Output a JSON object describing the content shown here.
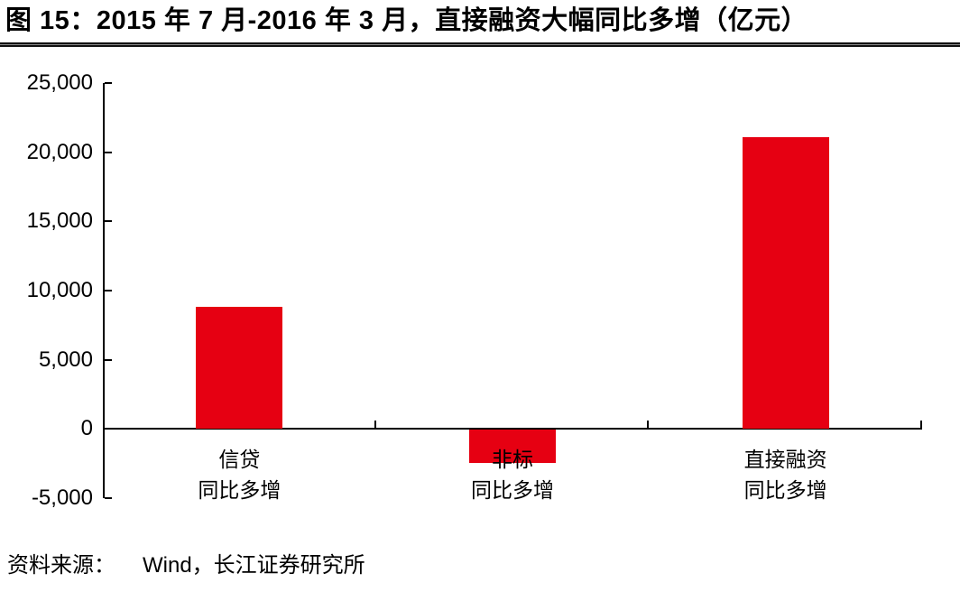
{
  "figure": {
    "title": "图 15：2015 年 7 月-2016 年 3 月，直接融资大幅同比多增（亿元）",
    "source_prefix": "资料来源：",
    "source_text": "Wind，长江证券研究所"
  },
  "colors": {
    "bar": "#e60012",
    "axis": "#000000",
    "text": "#000000"
  },
  "chart_data": {
    "type": "bar",
    "title": "图 15：2015 年 7 月-2016 年 3 月，直接融资大幅同比多增（亿元）",
    "unit": "亿元",
    "categories": [
      [
        "信贷",
        "同比多增"
      ],
      [
        "非标",
        "同比多增"
      ],
      [
        "直接融资",
        "同比多增"
      ]
    ],
    "values": [
      8800,
      -2400,
      21100
    ],
    "ylim": [
      -5000,
      25000
    ],
    "ytick_step": 5000,
    "ytick_labels": [
      "25,000",
      "20,000",
      "15,000",
      "10,000",
      "5,000",
      "0",
      "-5,000"
    ],
    "grid": false,
    "legend": "none",
    "bar_color": "#e60012",
    "source": "资料来源： Wind，长江证券研究所"
  }
}
